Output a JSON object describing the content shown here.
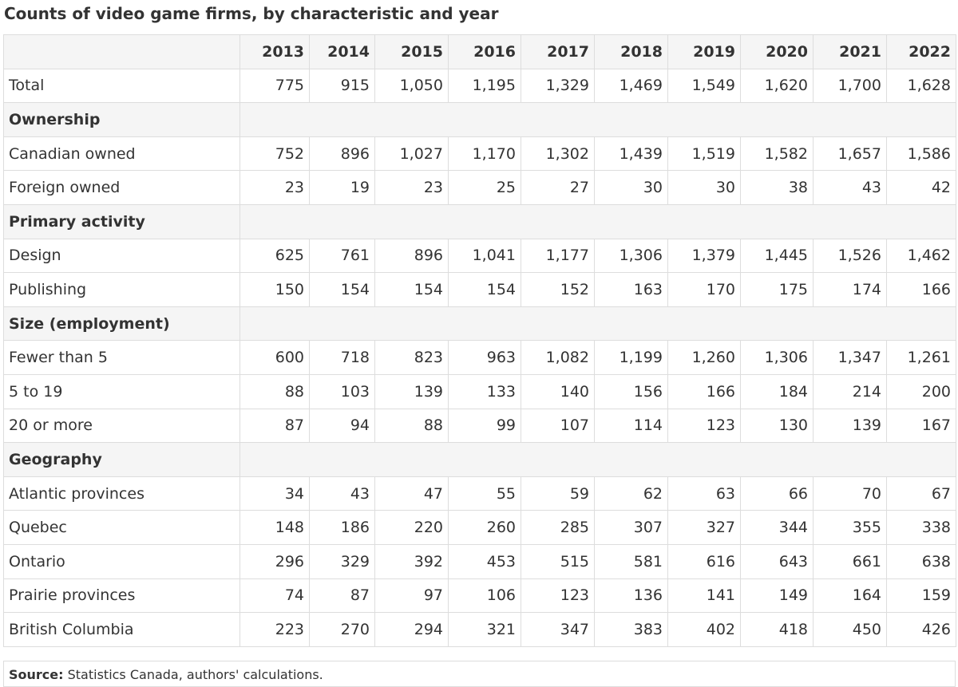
{
  "title": "Counts of video game firms, by characteristic and year",
  "years": [
    "2013",
    "2014",
    "2015",
    "2016",
    "2017",
    "2018",
    "2019",
    "2020",
    "2021",
    "2022"
  ],
  "rows": [
    {
      "type": "data",
      "label": "Total",
      "values": [
        "775",
        "915",
        "1,050",
        "1,195",
        "1,329",
        "1,469",
        "1,549",
        "1,620",
        "1,700",
        "1,628"
      ]
    },
    {
      "type": "section",
      "label": "Ownership"
    },
    {
      "type": "sub",
      "label": "Canadian owned",
      "values": [
        "752",
        "896",
        "1,027",
        "1,170",
        "1,302",
        "1,439",
        "1,519",
        "1,582",
        "1,657",
        "1,586"
      ]
    },
    {
      "type": "sub",
      "label": "Foreign owned",
      "values": [
        "23",
        "19",
        "23",
        "25",
        "27",
        "30",
        "30",
        "38",
        "43",
        "42"
      ]
    },
    {
      "type": "section",
      "label": "Primary activity"
    },
    {
      "type": "sub",
      "label": "Design",
      "values": [
        "625",
        "761",
        "896",
        "1,041",
        "1,177",
        "1,306",
        "1,379",
        "1,445",
        "1,526",
        "1,462"
      ]
    },
    {
      "type": "sub",
      "label": "Publishing",
      "values": [
        "150",
        "154",
        "154",
        "154",
        "152",
        "163",
        "170",
        "175",
        "174",
        "166"
      ]
    },
    {
      "type": "section",
      "label": "Size (employment)"
    },
    {
      "type": "sub",
      "label": "Fewer than 5",
      "values": [
        "600",
        "718",
        "823",
        "963",
        "1,082",
        "1,199",
        "1,260",
        "1,306",
        "1,347",
        "1,261"
      ]
    },
    {
      "type": "sub",
      "label": "5 to 19",
      "values": [
        "88",
        "103",
        "139",
        "133",
        "140",
        "156",
        "166",
        "184",
        "214",
        "200"
      ]
    },
    {
      "type": "sub",
      "label": "20 or more",
      "values": [
        "87",
        "94",
        "88",
        "99",
        "107",
        "114",
        "123",
        "130",
        "139",
        "167"
      ]
    },
    {
      "type": "section",
      "label": "Geography"
    },
    {
      "type": "sub",
      "label": "Atlantic provinces",
      "values": [
        "34",
        "43",
        "47",
        "55",
        "59",
        "62",
        "63",
        "66",
        "70",
        "67"
      ]
    },
    {
      "type": "sub",
      "label": "Quebec",
      "values": [
        "148",
        "186",
        "220",
        "260",
        "285",
        "307",
        "327",
        "344",
        "355",
        "338"
      ]
    },
    {
      "type": "sub",
      "label": "Ontario",
      "values": [
        "296",
        "329",
        "392",
        "453",
        "515",
        "581",
        "616",
        "643",
        "661",
        "638"
      ]
    },
    {
      "type": "sub",
      "label": "Prairie provinces",
      "values": [
        "74",
        "87",
        "97",
        "106",
        "123",
        "136",
        "141",
        "149",
        "164",
        "159"
      ]
    },
    {
      "type": "sub",
      "label": "British Columbia",
      "values": [
        "223",
        "270",
        "294",
        "321",
        "347",
        "383",
        "402",
        "418",
        "450",
        "426"
      ]
    }
  ],
  "source": {
    "label": "Source:",
    "text": "Statistics Canada, authors' calculations."
  }
}
